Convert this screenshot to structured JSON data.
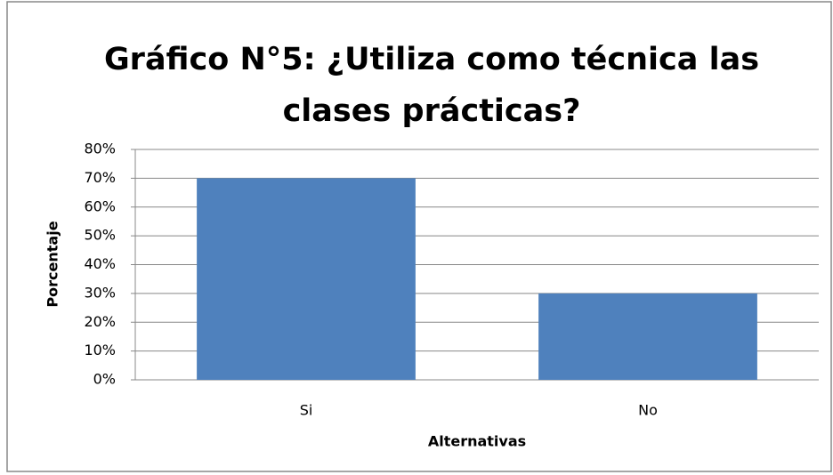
{
  "chart_data": {
    "type": "bar",
    "title": "Gráfico N°5: ¿Utiliza como técnica las clases prácticas?",
    "x_label": "Alternativas",
    "y_label": "Porcentaje",
    "categories": [
      "Si",
      "No"
    ],
    "values": [
      70,
      30
    ],
    "color": "#4f81bd",
    "ylim": [
      0,
      80
    ],
    "yticks": [
      {
        "value": 0,
        "label": "0%"
      },
      {
        "value": 10,
        "label": "10%"
      },
      {
        "value": 20,
        "label": "20%"
      },
      {
        "value": 30,
        "label": "30%"
      },
      {
        "value": 40,
        "label": "40%"
      },
      {
        "value": 50,
        "label": "50%"
      },
      {
        "value": 60,
        "label": "60%"
      },
      {
        "value": 70,
        "label": "70%"
      },
      {
        "value": 80,
        "label": "80%"
      }
    ],
    "grid": true
  }
}
